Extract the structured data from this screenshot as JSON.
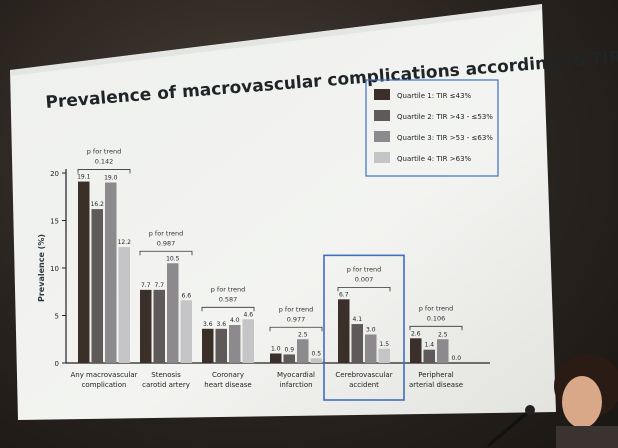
{
  "chart_data": {
    "type": "bar",
    "title": "Prevalence of macrovascular complications according to TIR",
    "ylabel": "Prevalence (%)",
    "ylim": [
      0,
      20
    ],
    "yticks": [
      0,
      5,
      10,
      15,
      20
    ],
    "legend_position": "top-right",
    "categories": [
      [
        "Any macrovascular",
        "complication"
      ],
      [
        "Stenosis",
        "carotid artery"
      ],
      [
        "Coronary",
        "heart disease"
      ],
      [
        "Myocardial",
        "infarction"
      ],
      [
        "Cerebrovascular",
        "accident"
      ],
      [
        "Peripheral",
        "arterial disease"
      ]
    ],
    "series": [
      {
        "name": "Quartile 1: TIR ≤43%",
        "color": "#3b2f2a",
        "values": [
          19.1,
          7.7,
          3.6,
          1.0,
          6.7,
          2.6
        ]
      },
      {
        "name": "Quartile 2: TIR >43 - ≤53%",
        "color": "#5f5a59",
        "values": [
          16.2,
          7.7,
          3.6,
          0.9,
          4.1,
          1.4
        ]
      },
      {
        "name": "Quartile 3: TIR >53 - ≤63%",
        "color": "#8d8a8d",
        "values": [
          19.0,
          10.5,
          4.0,
          2.5,
          3.0,
          2.5
        ]
      },
      {
        "name": "Quartile 4: TIR >63%",
        "color": "#c5c4c6",
        "values": [
          12.2,
          6.6,
          4.6,
          0.5,
          1.5,
          0.0
        ]
      }
    ],
    "value_labels": [
      [
        "19.1",
        "16.2",
        "19.0",
        "12.2"
      ],
      [
        "7.7",
        "7.7",
        "10.5",
        "6.6"
      ],
      [
        "3.6",
        "3.6",
        "4.0",
        "4.6"
      ],
      [
        "1.0",
        "0.9",
        "2.5",
        "0.5"
      ],
      [
        "6.7",
        "4.1",
        "3.0",
        "1.5"
      ],
      [
        "2.6",
        "1.4",
        "2.5",
        "0.0"
      ]
    ],
    "p_trend_label": "p for trend",
    "p_trend_values": [
      "0.142",
      "0.987",
      "0.587",
      "0.977",
      "0.007",
      "0.106"
    ],
    "highlighted_category_index": 4,
    "highlight_color": "#3f6fbf",
    "grid": false
  }
}
